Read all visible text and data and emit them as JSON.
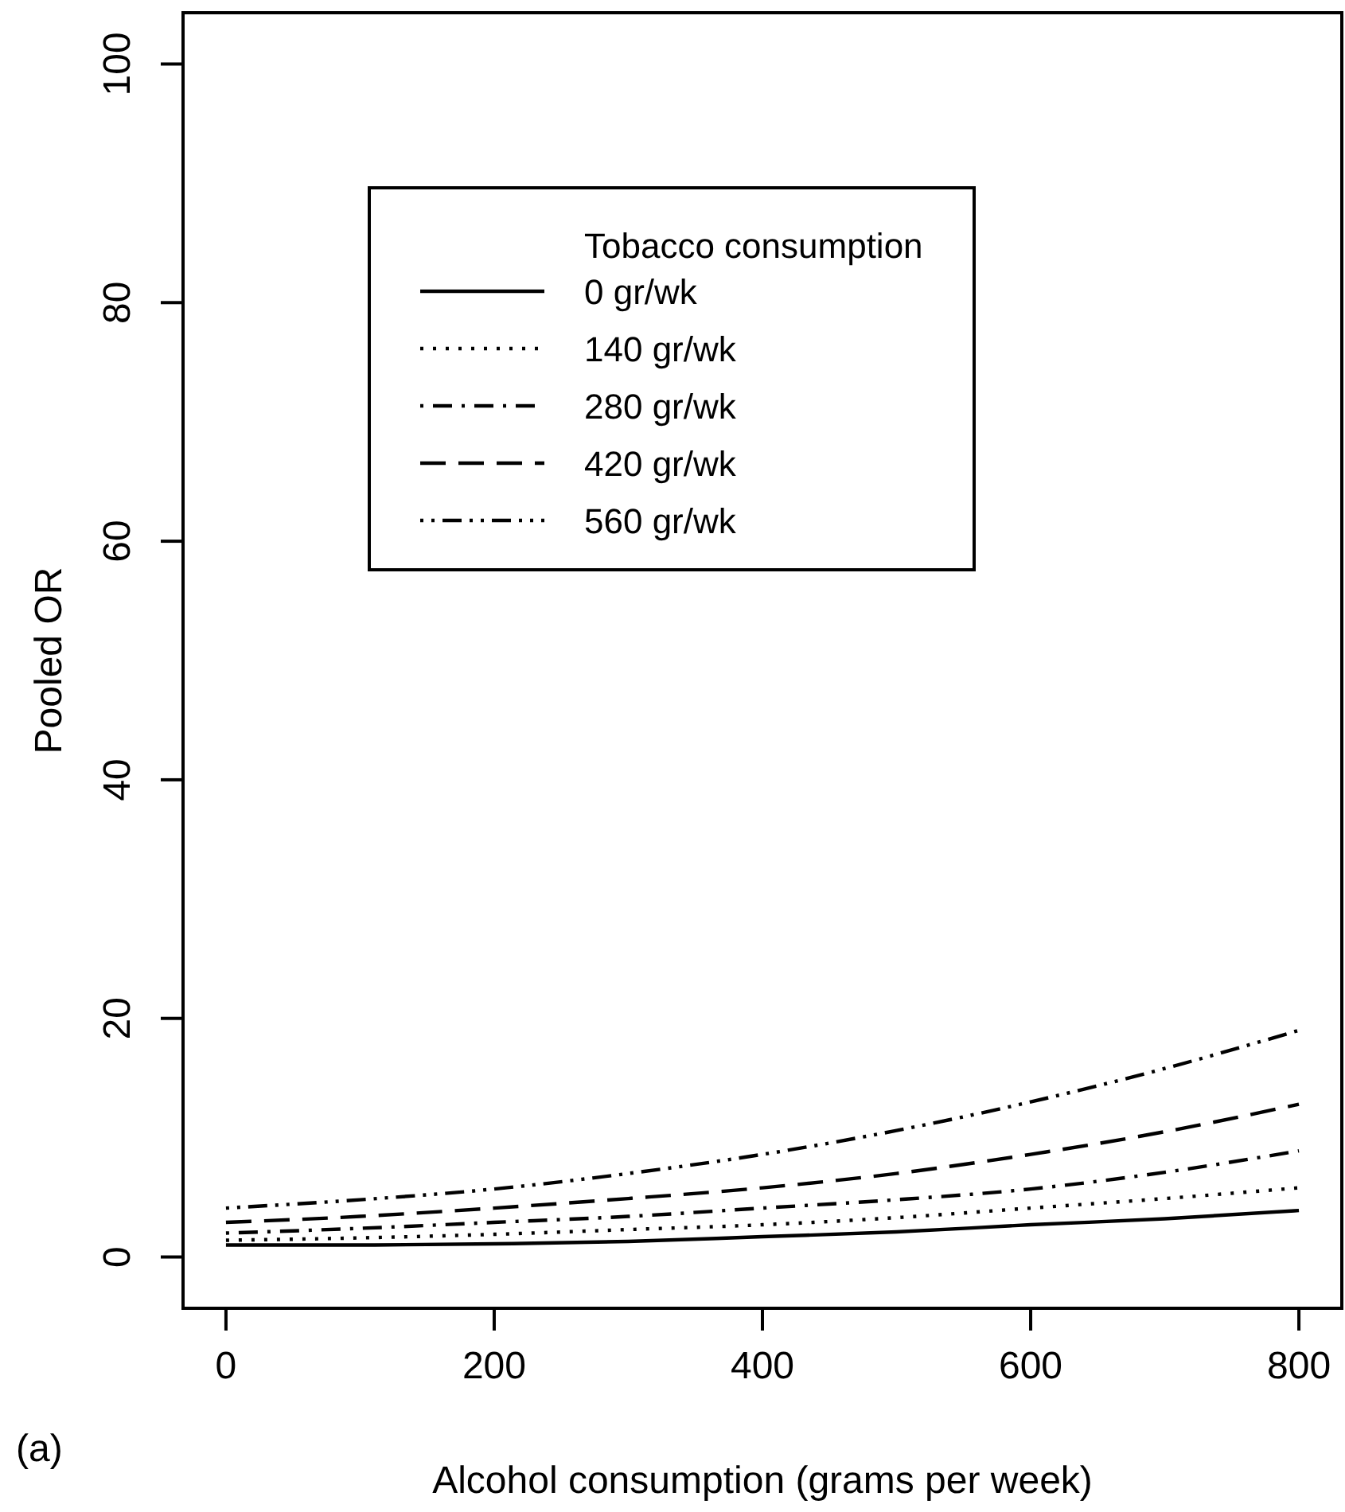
{
  "chart_data": {
    "type": "line",
    "xlabel": "Alcohol consumption (grams per week)",
    "ylabel": "Pooled OR",
    "legend_title": "Tobacco consumption",
    "legend": "top",
    "grid": false,
    "x": [
      0,
      100,
      200,
      300,
      400,
      500,
      600,
      700,
      800
    ],
    "xlim": [
      -32,
      832
    ],
    "xticks": [
      0,
      200,
      400,
      600,
      800
    ],
    "ylim": [
      -4.3,
      104.3
    ],
    "yticks": [
      0,
      20,
      40,
      60,
      80,
      100
    ],
    "annotations": [
      "(a)"
    ],
    "series": [
      {
        "name": "0 gr/wk",
        "color": "#000000",
        "line_style": "solid",
        "values": [
          1.0,
          1.0,
          1.1,
          1.3,
          1.7,
          2.1,
          2.7,
          3.2,
          3.9
        ]
      },
      {
        "name": "140 gr/wk",
        "color": "#000000",
        "line_style": "dotted",
        "values": [
          1.4,
          1.6,
          1.9,
          2.3,
          2.7,
          3.3,
          4.1,
          4.9,
          5.8
        ]
      },
      {
        "name": "280 gr/wk",
        "color": "#000000",
        "line_style": "dashdot",
        "values": [
          2.0,
          2.4,
          2.9,
          3.4,
          4.1,
          4.8,
          5.7,
          7.1,
          8.9
        ]
      },
      {
        "name": "420 gr/wk",
        "color": "#000000",
        "line_style": "dashed",
        "values": [
          2.9,
          3.4,
          4.1,
          4.9,
          5.8,
          7.0,
          8.6,
          10.5,
          12.8
        ]
      },
      {
        "name": "560 gr/wk",
        "color": "#000000",
        "line_style": "dashdotdot",
        "values": [
          4.1,
          4.8,
          5.7,
          7.0,
          8.6,
          10.6,
          13.0,
          15.8,
          19.0
        ]
      }
    ]
  }
}
